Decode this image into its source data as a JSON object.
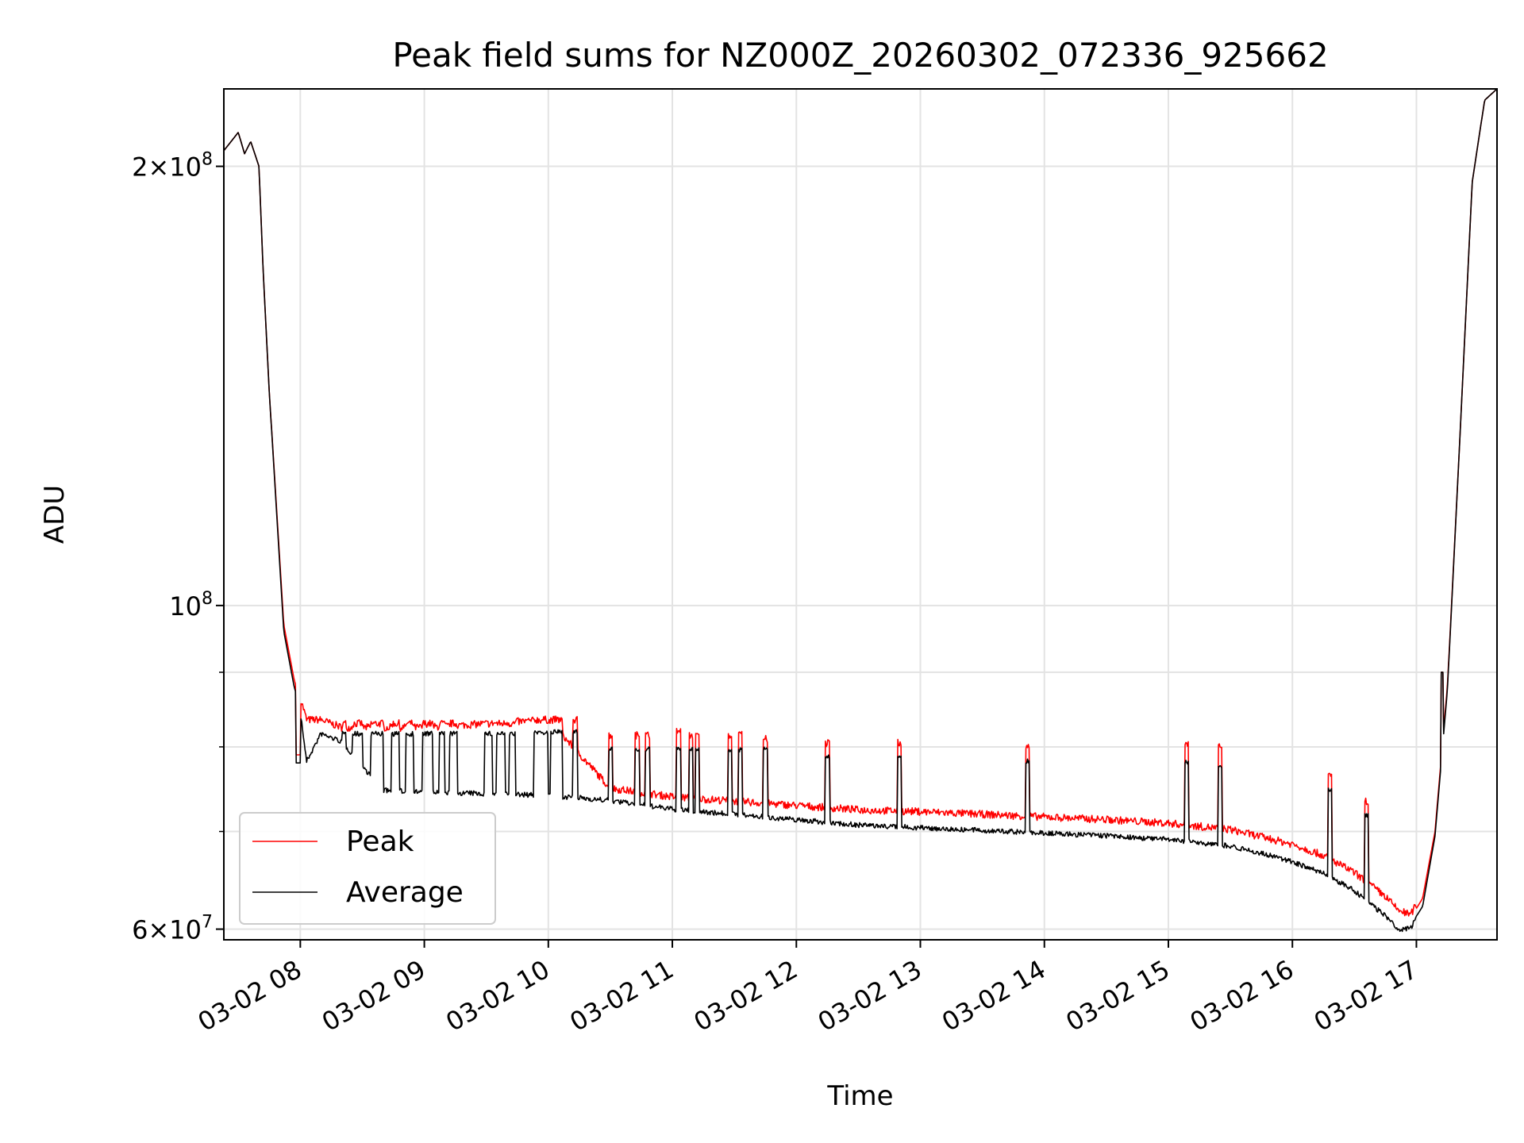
{
  "chart_data": {
    "type": "line",
    "title": "Peak field sums for NZ000Z_20260302_072336_925662",
    "xlabel": "Time",
    "ylabel": "ADU",
    "y_scale": "log",
    "ylim": [
      59000000,
      226000000
    ],
    "xlim": [
      "03-02 07:23",
      "03-02 17:39"
    ],
    "x_ticks": [
      "03-02 08",
      "03-02 09",
      "03-02 10",
      "03-02 11",
      "03-02 12",
      "03-02 13",
      "03-02 14",
      "03-02 15",
      "03-02 16",
      "03-02 17"
    ],
    "y_ticks": [
      {
        "label_base": "2",
        "label_exp": "8",
        "value": 200000000,
        "mantissa": true
      },
      {
        "label_base": "10",
        "label_exp": "8",
        "value": 100000000,
        "mantissa": false
      },
      {
        "label_base": "6",
        "label_exp": "7",
        "value": 60000000,
        "mantissa": true
      }
    ],
    "y_minor_ticks": [
      70000000,
      80000000,
      90000000
    ],
    "grid": true,
    "legend_position": "lower-left",
    "colors": {
      "peak": "#ff0000",
      "average": "#000000"
    },
    "x_times": [
      "03-02 07:23",
      "03-02 07:30",
      "03-02 07:33",
      "03-02 07:36",
      "03-02 07:40",
      "03-02 07:42",
      "03-02 07:45",
      "03-02 07:52",
      "03-02 07:57",
      "03-02 08:00",
      "03-02 08:03",
      "03-02 08:10",
      "03-02 08:20",
      "03-02 08:40",
      "03-02 09:00",
      "03-02 09:30",
      "03-02 10:00",
      "03-02 10:30",
      "03-02 11:00",
      "03-02 11:30",
      "03-02 12:00",
      "03-02 12:30",
      "03-02 13:00",
      "03-02 13:30",
      "03-02 14:00",
      "03-02 14:30",
      "03-02 15:00",
      "03-02 15:30",
      "03-02 15:45",
      "03-02 16:00",
      "03-02 16:15",
      "03-02 16:30",
      "03-02 16:45",
      "03-02 16:51",
      "03-02 16:57",
      "03-02 17:03",
      "03-02 17:09",
      "03-02 17:15",
      "03-02 17:21",
      "03-02 17:27",
      "03-02 17:33",
      "03-02 17:39"
    ],
    "series": [
      {
        "name": "Peak",
        "values": [
          205000000,
          211000000,
          204000000,
          208000000,
          200000000,
          170000000,
          140000000,
          97000000,
          89000000,
          86000000,
          83000000,
          83000000,
          82000000,
          82000000,
          82000000,
          82500000,
          83000000,
          74500000,
          73500000,
          73000000,
          72500000,
          72000000,
          71800000,
          71500000,
          71200000,
          70900000,
          70500000,
          69800000,
          69000000,
          68200000,
          67000000,
          65200000,
          62800000,
          61500000,
          61000000,
          63000000,
          70000000,
          88000000,
          130000000,
          195000000,
          222000000,
          226000000
        ]
      },
      {
        "name": "Average",
        "values": [
          205000000,
          211000000,
          204000000,
          208000000,
          200000000,
          170000000,
          140000000,
          96000000,
          88000000,
          85000000,
          78500000,
          82000000,
          81000000,
          75000000,
          74800000,
          74600000,
          74400000,
          73800000,
          72800000,
          72200000,
          71600000,
          71000000,
          70700000,
          70400000,
          70100000,
          69800000,
          69400000,
          68700000,
          67900000,
          67000000,
          65800000,
          64000000,
          61500000,
          60200000,
          60300000,
          62200000,
          69500000,
          87500000,
          130000000,
          195000000,
          222000000,
          226000000
        ]
      }
    ],
    "spike_events": [
      {
        "start": "03-02 07:58",
        "end": "03-02 08:00",
        "peak": 79000000,
        "average": 78000000
      },
      {
        "start": "03-02 08:20",
        "end": "03-02 08:22",
        "peak": 82500000,
        "average": 82000000
      },
      {
        "start": "03-02 08:25",
        "end": "03-02 08:30",
        "peak": 82500000,
        "average": 82000000
      },
      {
        "start": "03-02 08:34",
        "end": "03-02 08:40",
        "peak": 82500000,
        "average": 82000000
      },
      {
        "start": "03-02 08:44",
        "end": "03-02 08:48",
        "peak": 82500000,
        "average": 82000000
      },
      {
        "start": "03-02 08:51",
        "end": "03-02 08:55",
        "peak": 82500000,
        "average": 82000000
      },
      {
        "start": "03-02 08:59",
        "end": "03-02 09:04",
        "peak": 82500000,
        "average": 82000000
      },
      {
        "start": "03-02 09:07",
        "end": "03-02 09:10",
        "peak": 82500000,
        "average": 82000000
      },
      {
        "start": "03-02 09:12",
        "end": "03-02 09:16",
        "peak": 82500000,
        "average": 82000000
      },
      {
        "start": "03-02 09:29",
        "end": "03-02 09:33",
        "peak": 82500000,
        "average": 82000000
      },
      {
        "start": "03-02 09:35",
        "end": "03-02 09:39",
        "peak": 82500000,
        "average": 82000000
      },
      {
        "start": "03-02 09:41",
        "end": "03-02 09:44",
        "peak": 82500000,
        "average": 82000000
      },
      {
        "start": "03-02 09:53",
        "end": "03-02 10:00",
        "peak": 83000000,
        "average": 82200000
      },
      {
        "start": "03-02 10:01",
        "end": "03-02 10:07",
        "peak": 83000000,
        "average": 82200000
      },
      {
        "start": "03-02 10:12",
        "end": "03-02 10:14",
        "peak": 83000000,
        "average": 82200000
      },
      {
        "start": "03-02 10:29",
        "end": "03-02 10:31",
        "peak": 81000000,
        "average": 80000000
      },
      {
        "start": "03-02 10:42",
        "end": "03-02 10:44",
        "peak": 81000000,
        "average": 80000000
      },
      {
        "start": "03-02 10:47",
        "end": "03-02 10:49",
        "peak": 81000000,
        "average": 80000000
      },
      {
        "start": "03-02 11:02",
        "end": "03-02 11:04",
        "peak": 81500000,
        "average": 80000000
      },
      {
        "start": "03-02 11:08",
        "end": "03-02 11:10",
        "peak": 81000000,
        "average": 80000000
      },
      {
        "start": "03-02 11:11",
        "end": "03-02 11:13",
        "peak": 81000000,
        "average": 80000000
      },
      {
        "start": "03-02 11:27",
        "end": "03-02 11:29",
        "peak": 81000000,
        "average": 80000000
      },
      {
        "start": "03-02 11:32",
        "end": "03-02 11:34",
        "peak": 81000000,
        "average": 80000000
      },
      {
        "start": "03-02 11:44",
        "end": "03-02 11:46",
        "peak": 80500000,
        "average": 80000000
      },
      {
        "start": "03-02 12:14",
        "end": "03-02 12:16",
        "peak": 80000000,
        "average": 79000000
      },
      {
        "start": "03-02 12:49",
        "end": "03-02 12:51",
        "peak": 80000000,
        "average": 79000000
      },
      {
        "start": "03-02 13:51",
        "end": "03-02 13:53",
        "peak": 79500000,
        "average": 78500000
      },
      {
        "start": "03-02 15:08",
        "end": "03-02 15:10",
        "peak": 80000000,
        "average": 78500000
      },
      {
        "start": "03-02 15:24",
        "end": "03-02 15:26",
        "peak": 79500000,
        "average": 78000000
      },
      {
        "start": "03-02 16:17",
        "end": "03-02 16:19",
        "peak": 76000000,
        "average": 75000000
      },
      {
        "start": "03-02 16:35",
        "end": "03-02 16:37",
        "peak": 73000000,
        "average": 72000000
      },
      {
        "start": "03-02 17:12",
        "end": "03-02 17:13",
        "peak": 90000000,
        "average": 90000000
      }
    ]
  }
}
